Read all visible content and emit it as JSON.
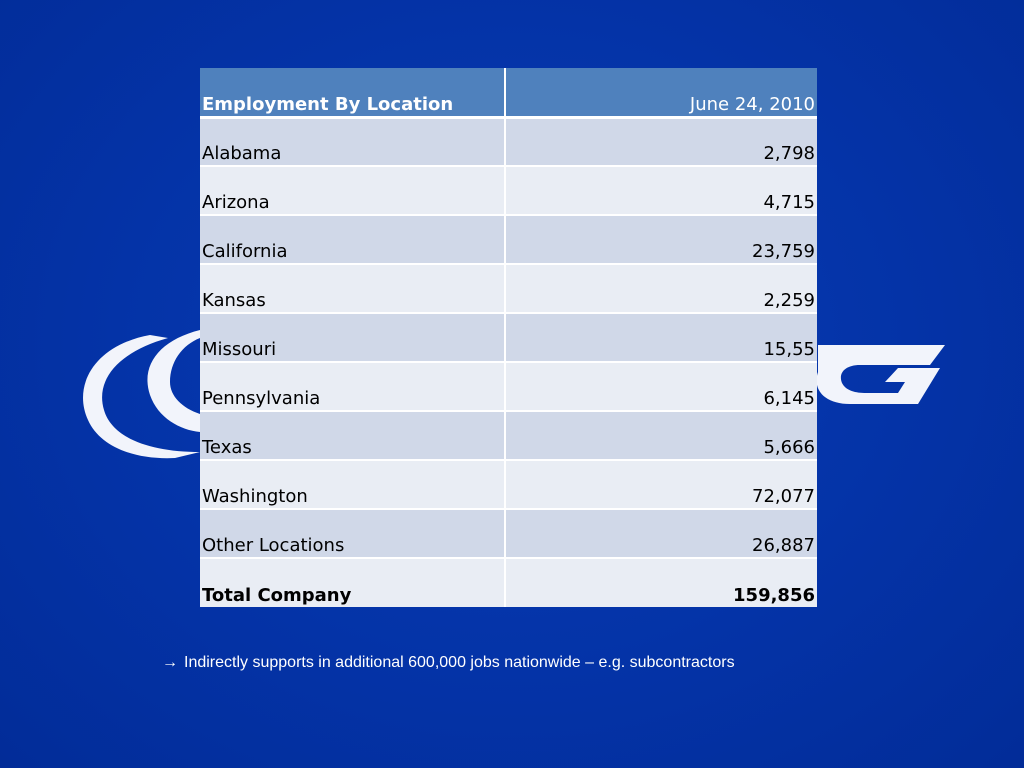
{
  "slide": {
    "background_color": "#0433a7",
    "logo_icon": "boeing-logo-icon"
  },
  "table": {
    "header": {
      "location_label": "Employment By Location",
      "date_label": "June 24, 2010"
    },
    "rows": [
      {
        "location": "Alabama",
        "employees": "2,798"
      },
      {
        "location": "Arizona",
        "employees": "4,715"
      },
      {
        "location": "California",
        "employees": "23,759"
      },
      {
        "location": "Kansas",
        "employees": "2,259"
      },
      {
        "location": "Missouri",
        "employees": "15,55"
      },
      {
        "location": "Pennsylvania",
        "employees": "6,145"
      },
      {
        "location": "Texas",
        "employees": "5,666"
      },
      {
        "location": "Washington",
        "employees": "72,077"
      },
      {
        "location": "Other Locations",
        "employees": "26,887"
      }
    ],
    "total": {
      "location": "Total Company",
      "employees": "159,856"
    },
    "colors": {
      "header": "#4f81bd",
      "row_dark": "#d0d8e8",
      "row_light": "#e9edf4"
    }
  },
  "footnote": {
    "arrow_icon": "right-arrow-icon",
    "arrow": "→",
    "text": "Indirectly supports in additional 600,000 jobs nationwide – e.g. subcontractors"
  }
}
